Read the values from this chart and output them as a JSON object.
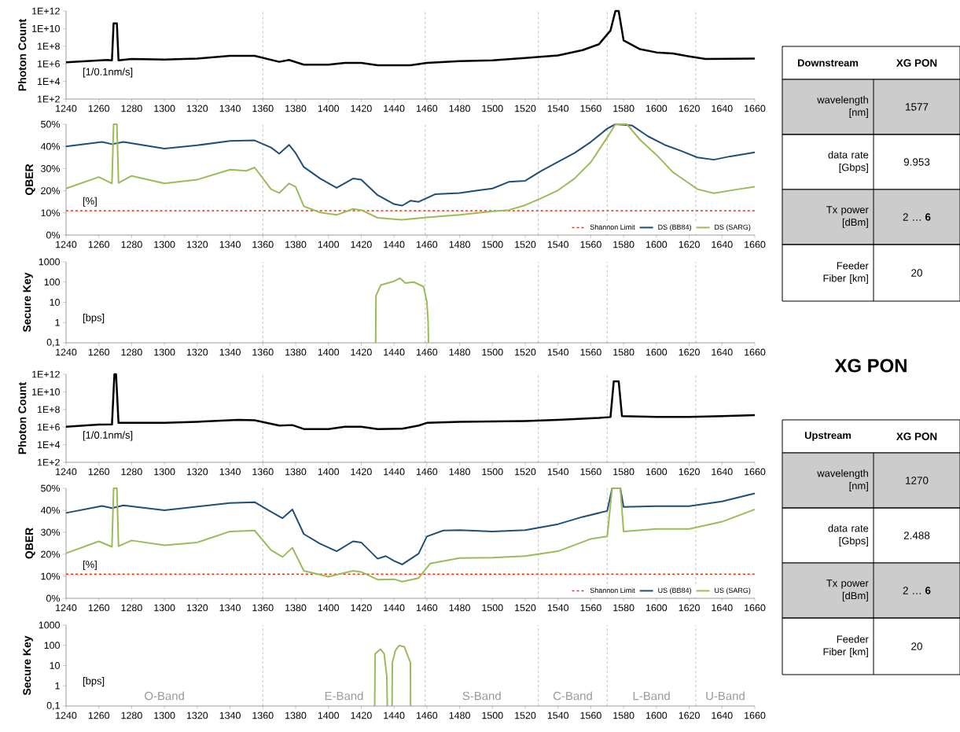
{
  "chart_data": [
    {
      "type": "line",
      "ylabel": "Photon Count",
      "log": "y",
      "annotations": [
        "[1/0.1nm/s]"
      ],
      "xlim": [
        1240,
        1660
      ],
      "xticks": [
        1240,
        1260,
        1280,
        1300,
        1320,
        1340,
        1360,
        1380,
        1400,
        1420,
        1440,
        1460,
        1480,
        1500,
        1520,
        1540,
        1560,
        1580,
        1600,
        1620,
        1640,
        1660
      ],
      "ylim": [
        100,
        1000000000000.0
      ],
      "yticks": [
        {
          "value": 100,
          "label": "1E+2"
        },
        {
          "value": 10000.0,
          "label": "1E+4"
        },
        {
          "value": 1000000.0,
          "label": "1E+6"
        },
        {
          "value": 100000000.0,
          "label": "1E+8"
        },
        {
          "value": 10000000000.0,
          "label": "1E+10"
        },
        {
          "value": 1000000000000.0,
          "label": "1E+12"
        }
      ],
      "ref_lines": [
        {
          "axis": "x",
          "value": 1360,
          "color": "#808080",
          "line_style": "dashed"
        },
        {
          "axis": "x",
          "value": 1459,
          "color": "#808080",
          "line_style": "dashed"
        },
        {
          "axis": "x",
          "value": 1528,
          "color": "#808080",
          "line_style": "dashed"
        },
        {
          "axis": "x",
          "value": 1570,
          "color": "#808080",
          "line_style": "dashed"
        },
        {
          "axis": "x",
          "value": 1624,
          "color": "#808080",
          "line_style": "dashed"
        }
      ],
      "series": [
        {
          "color": "#000000",
          "x": [
            1240,
            1265,
            1268,
            1269,
            1271,
            1272,
            1280,
            1300,
            1320,
            1340,
            1355,
            1370,
            1376,
            1385,
            1400,
            1410,
            1420,
            1430,
            1450,
            1460,
            1480,
            1500,
            1520,
            1540,
            1555,
            1565,
            1572,
            1575,
            1577,
            1580,
            1590,
            1600,
            1610,
            1620,
            1630,
            1660
          ],
          "values": [
            1500000.0,
            2800000.0,
            2500000.0,
            40000000000.0,
            40000000000.0,
            2500000.0,
            3500000.0,
            3000000.0,
            4000000.0,
            8000000.0,
            8000000.0,
            1700000.0,
            2800000.0,
            800000.0,
            800000.0,
            1300000.0,
            1300000.0,
            700000.0,
            700000.0,
            1300000.0,
            2000000.0,
            2500000.0,
            4600000.0,
            9000000.0,
            36000000.0,
            170000000.0,
            6000000000.0,
            1000000000000.0,
            1000000000000.0,
            460000000.0,
            46000000.0,
            20000000.0,
            15000000.0,
            7000000.0,
            3600000.0,
            4000000.0
          ]
        }
      ]
    },
    {
      "type": "line",
      "ylabel": "QBER",
      "annotations": [
        "[%]"
      ],
      "legend": "bottom right",
      "xlim": [
        1240,
        1660
      ],
      "xticks": [
        1240,
        1260,
        1280,
        1300,
        1320,
        1340,
        1360,
        1380,
        1400,
        1420,
        1440,
        1460,
        1480,
        1500,
        1520,
        1540,
        1560,
        1580,
        1600,
        1620,
        1640,
        1660
      ],
      "ylim": [
        0,
        50
      ],
      "yticks": [
        {
          "value": 0,
          "label": "0%"
        },
        {
          "value": 10,
          "label": "10%"
        },
        {
          "value": 20,
          "label": "20%"
        },
        {
          "value": 30,
          "label": "30%"
        },
        {
          "value": 40,
          "label": "40%"
        },
        {
          "value": 50,
          "label": "50%"
        }
      ],
      "ref_lines": [
        {
          "axis": "y",
          "value": 11,
          "label": "Shannon Limit",
          "color": "#ff2a00",
          "line_style": "dashed"
        },
        {
          "axis": "x",
          "value": 1360,
          "color": "#808080",
          "line_style": "dashed"
        },
        {
          "axis": "x",
          "value": 1459,
          "color": "#808080",
          "line_style": "dashed"
        },
        {
          "axis": "x",
          "value": 1528,
          "color": "#808080",
          "line_style": "dashed"
        },
        {
          "axis": "x",
          "value": 1570,
          "color": "#808080",
          "line_style": "dashed"
        },
        {
          "axis": "x",
          "value": 1624,
          "color": "#808080",
          "line_style": "dashed"
        }
      ],
      "series": [
        {
          "name": "DS (BB84)",
          "color": "#1f4e79",
          "x": [
            1240,
            1262,
            1268,
            1275,
            1300,
            1320,
            1340,
            1355,
            1365,
            1370,
            1376,
            1380,
            1385,
            1395,
            1405,
            1415,
            1420,
            1430,
            1440,
            1445,
            1450,
            1455,
            1465,
            1480,
            1490,
            1500,
            1510,
            1520,
            1530,
            1540,
            1550,
            1560,
            1570,
            1575,
            1585,
            1595,
            1605,
            1615,
            1625,
            1635,
            1645,
            1660
          ],
          "values": [
            40,
            42,
            41,
            42,
            39,
            40.5,
            42.5,
            42.7,
            39.5,
            36.7,
            40.7,
            37,
            30.7,
            25.5,
            21.3,
            25.5,
            25,
            18,
            14,
            13.3,
            15.5,
            15,
            18.4,
            19,
            20,
            21,
            24,
            24.5,
            29,
            33,
            37,
            42,
            48,
            50,
            49.5,
            44.5,
            40.7,
            38,
            35,
            34,
            35.5,
            37.3
          ]
        },
        {
          "name": "DS (SARG)",
          "color": "#9bbb59",
          "x": [
            1240,
            1260,
            1268,
            1269,
            1271,
            1272,
            1280,
            1300,
            1320,
            1340,
            1350,
            1355,
            1365,
            1370,
            1376,
            1380,
            1385,
            1395,
            1405,
            1415,
            1420,
            1430,
            1445,
            1460,
            1480,
            1500,
            1510,
            1520,
            1530,
            1540,
            1550,
            1560,
            1570,
            1575,
            1582,
            1590,
            1600,
            1610,
            1620,
            1625,
            1635,
            1650,
            1660
          ],
          "values": [
            21,
            26.2,
            23.3,
            50,
            50,
            23.5,
            26.7,
            23.3,
            25,
            29.5,
            29,
            30.5,
            20.7,
            19,
            23.3,
            21.8,
            13,
            10.2,
            9.1,
            11.8,
            11.3,
            7.8,
            6.9,
            8,
            9.1,
            10.7,
            11.3,
            13.5,
            16.7,
            20.2,
            25.5,
            32.9,
            44,
            50,
            50,
            43,
            36.2,
            28.4,
            23.3,
            20.7,
            18.9,
            20.7,
            21.8
          ]
        }
      ]
    },
    {
      "type": "line",
      "ylabel": "Secure Key",
      "log": "y",
      "annotations": [
        "[bps]"
      ],
      "xlim": [
        1240,
        1660
      ],
      "xticks": [
        1240,
        1260,
        1280,
        1300,
        1320,
        1340,
        1360,
        1380,
        1400,
        1420,
        1440,
        1460,
        1480,
        1500,
        1520,
        1540,
        1560,
        1580,
        1600,
        1620,
        1640,
        1660
      ],
      "ylim": [
        0.1,
        1000
      ],
      "yticks": [
        {
          "value": 0.1,
          "label": "0,1"
        },
        1,
        10,
        100,
        1000
      ],
      "ref_lines": [
        {
          "axis": "x",
          "value": 1360,
          "color": "#808080",
          "line_style": "dashed"
        },
        {
          "axis": "x",
          "value": 1459,
          "color": "#808080",
          "line_style": "dashed"
        },
        {
          "axis": "x",
          "value": 1528,
          "color": "#808080",
          "line_style": "dashed"
        },
        {
          "axis": "x",
          "value": 1570,
          "color": "#808080",
          "line_style": "dashed"
        },
        {
          "axis": "x",
          "value": 1624,
          "color": "#808080",
          "line_style": "dashed"
        }
      ],
      "series": [
        {
          "color": "#9bbb59",
          "x": [
            1428.8,
            1429,
            1432,
            1440,
            1443.6,
            1447,
            1452,
            1458,
            1460,
            1460.8,
            1461
          ],
          "values": [
            0.1,
            21,
            72,
            110,
            155,
            90,
            100,
            60,
            11,
            1.1,
            0.1
          ]
        }
      ]
    },
    {
      "type": "line",
      "ylabel": "Photon Count",
      "log": "y",
      "annotations": [
        "[1/0.1nm/s]"
      ],
      "xlim": [
        1240,
        1660
      ],
      "xticks": [
        1240,
        1260,
        1280,
        1300,
        1320,
        1340,
        1360,
        1380,
        1400,
        1420,
        1440,
        1460,
        1480,
        1500,
        1520,
        1540,
        1560,
        1580,
        1600,
        1620,
        1640,
        1660
      ],
      "ylim": [
        100,
        1000000000000.0
      ],
      "yticks": [
        {
          "value": 100,
          "label": "1E+2"
        },
        {
          "value": 10000.0,
          "label": "1E+4"
        },
        {
          "value": 1000000.0,
          "label": "1E+6"
        },
        {
          "value": 100000000.0,
          "label": "1E+8"
        },
        {
          "value": 10000000000.0,
          "label": "1E+10"
        },
        {
          "value": 1000000000000.0,
          "label": "1E+12"
        }
      ],
      "ref_lines": [
        {
          "axis": "x",
          "value": 1360,
          "color": "#808080",
          "line_style": "dashed"
        },
        {
          "axis": "x",
          "value": 1459,
          "color": "#808080",
          "line_style": "dashed"
        },
        {
          "axis": "x",
          "value": 1528,
          "color": "#808080",
          "line_style": "dashed"
        },
        {
          "axis": "x",
          "value": 1570,
          "color": "#808080",
          "line_style": "dashed"
        },
        {
          "axis": "x",
          "value": 1624,
          "color": "#808080",
          "line_style": "dashed"
        }
      ],
      "series": [
        {
          "color": "#000000",
          "x": [
            1240,
            1260,
            1268,
            1269.5,
            1270.5,
            1272,
            1300,
            1320,
            1345,
            1355,
            1370,
            1378,
            1385,
            1400,
            1410,
            1420,
            1430,
            1445,
            1455,
            1460,
            1480,
            1500,
            1520,
            1540,
            1565,
            1572,
            1574,
            1577,
            1579,
            1600,
            1620,
            1640,
            1660
          ],
          "values": [
            1100000.0,
            1900000.0,
            2000000.0,
            1000000000000.0,
            1000000000000.0,
            3000000.0,
            3000000.0,
            4000000.0,
            6500000.0,
            6000000.0,
            1500000.0,
            1700000.0,
            600000.0,
            600000.0,
            1100000.0,
            1100000.0,
            600000.0,
            650000.0,
            1500000.0,
            3000000.0,
            4000000.0,
            4500000.0,
            5000000.0,
            6500000.0,
            11000000.0,
            14000000.0,
            160000000000.0,
            160000000000.0,
            18000000.0,
            14000000.0,
            14000000.0,
            18000000.0,
            23000000.0
          ]
        }
      ]
    },
    {
      "type": "line",
      "ylabel": "QBER",
      "annotations": [
        "[%]"
      ],
      "legend": "bottom right",
      "xlim": [
        1240,
        1660
      ],
      "xticks": [
        1240,
        1260,
        1280,
        1300,
        1320,
        1340,
        1360,
        1380,
        1400,
        1420,
        1440,
        1460,
        1480,
        1500,
        1520,
        1540,
        1560,
        1580,
        1600,
        1620,
        1640,
        1660
      ],
      "ylim": [
        0,
        50
      ],
      "yticks": [
        {
          "value": 0,
          "label": "0%"
        },
        {
          "value": 10,
          "label": "10%"
        },
        {
          "value": 20,
          "label": "20%"
        },
        {
          "value": 30,
          "label": "30%"
        },
        {
          "value": 40,
          "label": "40%"
        },
        {
          "value": 50,
          "label": "50%"
        }
      ],
      "ref_lines": [
        {
          "axis": "y",
          "value": 11,
          "label": "Shannon Limit",
          "color": "#ff2a00",
          "line_style": "dashed"
        },
        {
          "axis": "x",
          "value": 1360,
          "color": "#808080",
          "line_style": "dashed"
        },
        {
          "axis": "x",
          "value": 1459,
          "color": "#808080",
          "line_style": "dashed"
        },
        {
          "axis": "x",
          "value": 1528,
          "color": "#808080",
          "line_style": "dashed"
        },
        {
          "axis": "x",
          "value": 1570,
          "color": "#808080",
          "line_style": "dashed"
        },
        {
          "axis": "x",
          "value": 1624,
          "color": "#808080",
          "line_style": "dashed"
        }
      ],
      "series": [
        {
          "name": "US (BB84)",
          "color": "#1f4e79",
          "x": [
            1240,
            1262,
            1268,
            1275,
            1300,
            1340,
            1355,
            1365,
            1372,
            1378,
            1385,
            1395,
            1405,
            1415,
            1420,
            1430,
            1435,
            1440,
            1445,
            1455,
            1460,
            1470,
            1480,
            1500,
            1520,
            1540,
            1555,
            1570,
            1573,
            1578,
            1580,
            1600,
            1620,
            1640,
            1660
          ],
          "values": [
            38.8,
            42,
            41,
            42.2,
            40,
            43.3,
            43.7,
            39.3,
            36.4,
            40.4,
            29.2,
            24.8,
            21.4,
            25.9,
            25.4,
            18,
            19.2,
            17,
            15.4,
            20.3,
            28.1,
            30.8,
            31,
            30.4,
            31,
            33.7,
            37,
            39.7,
            50,
            50,
            41.5,
            41.9,
            41.9,
            44,
            47.7
          ]
        },
        {
          "name": "US (SARG)",
          "color": "#9bbb59",
          "x": [
            1240,
            1260,
            1268,
            1269,
            1271,
            1272,
            1280,
            1300,
            1320,
            1340,
            1355,
            1365,
            1372,
            1378,
            1385,
            1400,
            1415,
            1420,
            1430,
            1440,
            1445,
            1455,
            1462,
            1480,
            1500,
            1520,
            1540,
            1560,
            1570,
            1573,
            1578,
            1580,
            1600,
            1620,
            1640,
            1660
          ],
          "values": [
            20.5,
            25.9,
            23.4,
            50,
            50,
            23.7,
            26.3,
            24.1,
            25.4,
            30.4,
            30.8,
            21.9,
            18.8,
            23,
            12.5,
            9.8,
            12.5,
            12,
            8.5,
            8.7,
            7.6,
            9.2,
            15.8,
            18.3,
            18.5,
            19.2,
            21.4,
            27,
            28.1,
            50,
            50,
            30.4,
            31.5,
            31.5,
            34.8,
            40.4
          ]
        }
      ]
    },
    {
      "type": "line",
      "ylabel": "Secure Key",
      "log": "y",
      "annotations": [
        "[bps]",
        "O-Band",
        "E-Band",
        "S-Band",
        "C-Band",
        "L-Band",
        "U-Band"
      ],
      "xlim": [
        1240,
        1660
      ],
      "xticks": [
        1240,
        1260,
        1280,
        1300,
        1320,
        1340,
        1360,
        1380,
        1400,
        1420,
        1440,
        1460,
        1480,
        1500,
        1520,
        1540,
        1560,
        1580,
        1600,
        1620,
        1640,
        1660
      ],
      "ylim": [
        0.1,
        1000
      ],
      "yticks": [
        {
          "value": 0.1,
          "label": "0,1"
        },
        1,
        10,
        100,
        1000
      ],
      "ref_lines": [
        {
          "axis": "x",
          "value": 1360,
          "color": "#808080",
          "line_style": "dashed"
        },
        {
          "axis": "x",
          "value": 1459,
          "color": "#808080",
          "line_style": "dashed"
        },
        {
          "axis": "x",
          "value": 1528,
          "color": "#808080",
          "line_style": "dashed"
        },
        {
          "axis": "x",
          "value": 1570,
          "color": "#808080",
          "line_style": "dashed"
        },
        {
          "axis": "x",
          "value": 1624,
          "color": "#808080",
          "line_style": "dashed"
        }
      ],
      "series": [
        {
          "color": "#9bbb59",
          "x": [
            1428.2,
            1428.5,
            1431.8,
            1434,
            1435.6,
            1435.9,
            null,
            1438.8,
            1439,
            1440.8,
            1443.2,
            1446.3,
            1450,
            1450.1
          ],
          "values": [
            0.1,
            38,
            65,
            38,
            2.9,
            0.1,
            null,
            0.1,
            14,
            55,
            98,
            84,
            14,
            0.1
          ]
        }
      ]
    },
    {
      "type": "other",
      "annotations": [
        "Downstream",
        "XG PON",
        "wavelength [nm]",
        "1577",
        "data rate [Gbps]",
        "9.953",
        "Tx power [dBm]",
        "2 … **6**",
        "Feeder Fiber [km]",
        "20"
      ]
    },
    {
      "type": "other",
      "title": "XG PON",
      "annotations": [
        "Upstream",
        "XG PON",
        "wavelength [nm]",
        "1270",
        "data rate [Gbps]",
        "2.488",
        "Tx power [dBm]",
        "2 … **6**",
        "Feeder Fiber [km]",
        "20"
      ]
    }
  ]
}
